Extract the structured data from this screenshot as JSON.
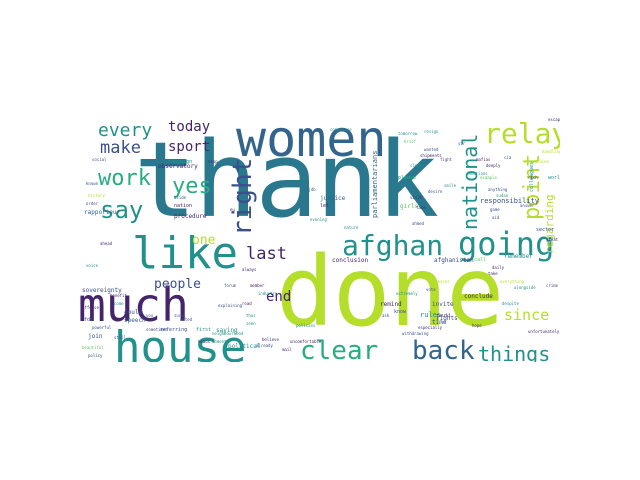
{
  "palette": {
    "dark_purple": "#44256b",
    "indigo": "#3b4f8a",
    "slate_blue": "#33658c",
    "teal_blue": "#2a788e",
    "teal": "#21918c",
    "green_teal": "#27ad81",
    "green": "#5ec962",
    "lime": "#b5de2b",
    "yellow_green": "#c8e020"
  },
  "cloud": {
    "words": [
      {
        "key": "thank",
        "text": "thank",
        "weight": 100,
        "color": "#2a788e"
      },
      {
        "key": "done",
        "text": "done",
        "weight": 95,
        "color": "#b5de2b"
      },
      {
        "key": "women",
        "text": "women",
        "weight": 52,
        "color": "#33658c"
      },
      {
        "key": "much",
        "text": "much",
        "weight": 45,
        "color": "#44256b"
      },
      {
        "key": "house",
        "text": "house",
        "weight": 45,
        "color": "#21918c"
      },
      {
        "key": "like",
        "text": "like",
        "weight": 43,
        "color": "#21918c"
      },
      {
        "key": "afghan",
        "text": "afghan",
        "weight": 30,
        "color": "#21918c"
      },
      {
        "key": "going",
        "text": "going",
        "weight": 30,
        "color": "#21918c"
      },
      {
        "key": "relay",
        "text": "relay",
        "weight": 28,
        "color": "#b5de2b"
      },
      {
        "key": "right",
        "text": "right",
        "weight": 26,
        "color": "#3b4f8a"
      },
      {
        "key": "clear",
        "text": "clear",
        "weight": 26,
        "color": "#27ad81"
      },
      {
        "key": "back",
        "text": "back",
        "weight": 25,
        "color": "#33658c"
      },
      {
        "key": "say",
        "text": "say",
        "weight": 24,
        "color": "#21918c"
      },
      {
        "key": "work",
        "text": "work",
        "weight": 22,
        "color": "#27ad81"
      },
      {
        "key": "yes",
        "text": "yes",
        "weight": 20,
        "color": "#27ad81"
      },
      {
        "key": "point",
        "text": "point",
        "weight": 20,
        "color": "#b5de2b"
      },
      {
        "key": "national",
        "text": "national",
        "weight": 18,
        "color": "#21918c"
      },
      {
        "key": "things",
        "text": "things",
        "weight": 19,
        "color": "#21918c"
      },
      {
        "key": "every",
        "text": "every",
        "weight": 18,
        "color": "#21918c"
      },
      {
        "key": "make",
        "text": "make",
        "weight": 17,
        "color": "#3b4f8a"
      },
      {
        "key": "last",
        "text": "last",
        "weight": 17,
        "color": "#44256b"
      },
      {
        "key": "since",
        "text": "since",
        "weight": 15,
        "color": "#b5de2b"
      },
      {
        "key": "today",
        "text": "today",
        "weight": 14,
        "color": "#44256b"
      },
      {
        "key": "sport",
        "text": "sport",
        "weight": 14,
        "color": "#44256b"
      },
      {
        "key": "end",
        "text": "end",
        "weight": 14,
        "color": "#44256b"
      },
      {
        "key": "people",
        "text": "people",
        "weight": 13,
        "color": "#3b4f8a"
      },
      {
        "key": "one",
        "text": "one",
        "weight": 13,
        "color": "#b5de2b"
      },
      {
        "key": "regarding",
        "text": "regarding",
        "weight": 11,
        "color": "#b5de2b"
      },
      {
        "key": "rules",
        "text": "rules",
        "weight": 7,
        "color": "#21918c"
      },
      {
        "key": "responsibility",
        "text": "responsibility",
        "weight": 7,
        "color": "#3b4f8a"
      },
      {
        "key": "parliamentarians",
        "text": "parliamentarians",
        "weight": 7,
        "color": "#33658c"
      },
      {
        "key": "remember",
        "text": "remember",
        "weight": 6,
        "color": "#21918c"
      },
      {
        "key": "observatory",
        "text": "observatory",
        "weight": 6,
        "color": "#44256b"
      },
      {
        "key": "sovereignty",
        "text": "sovereignty",
        "weight": 6,
        "color": "#3b4f8a"
      },
      {
        "key": "rapporteur",
        "text": "rapporteur",
        "weight": 6,
        "color": "#33658c"
      },
      {
        "key": "procedure",
        "text": "procedure",
        "weight": 6,
        "color": "#44256b"
      },
      {
        "key": "conclude",
        "text": "conclude",
        "weight": 6,
        "color": "#44256b"
      },
      {
        "key": "conclusion",
        "text": "conclusion",
        "weight": 6,
        "color": "#44256b"
      },
      {
        "key": "afghanistan",
        "text": "afghanistan",
        "weight": 6,
        "color": "#3b4f8a"
      },
      {
        "key": "saying",
        "text": "saying",
        "weight": 6,
        "color": "#21918c"
      },
      {
        "key": "political",
        "text": "political",
        "weight": 6,
        "color": "#21918c"
      },
      {
        "key": "referring",
        "text": "referring",
        "weight": 5,
        "color": "#3b4f8a"
      },
      {
        "key": "invite",
        "text": "invite",
        "weight": 6,
        "color": "#3b4f8a"
      },
      {
        "key": "justice",
        "text": "justice",
        "weight": 6,
        "color": "#33658c"
      },
      {
        "key": "campaign",
        "text": "campaign",
        "weight": 5,
        "color": "#21918c"
      },
      {
        "key": "colleagues",
        "text": "colleagues",
        "weight": 5,
        "color": "#21918c"
      },
      {
        "key": "sector",
        "text": "sector",
        "weight": 5,
        "color": "#3b4f8a"
      },
      {
        "key": "could",
        "text": "could",
        "weight": 6,
        "color": "#3b4f8a"
      },
      {
        "key": "speech",
        "text": "speech",
        "weight": 6,
        "color": "#33658c"
      },
      {
        "key": "nation",
        "text": "nation",
        "weight": 5,
        "color": "#44256b"
      },
      {
        "key": "join",
        "text": "join",
        "weight": 6,
        "color": "#3b4f8a"
      },
      {
        "key": "girls",
        "text": "girls",
        "weight": 6,
        "color": "#5ec962"
      },
      {
        "key": "please",
        "text": "please",
        "weight": 5,
        "color": "#27ad81"
      },
      {
        "key": "rights",
        "text": "rights",
        "weight": 6,
        "color": "#3b4f8a"
      },
      {
        "key": "remind",
        "text": "remind",
        "weight": 6,
        "color": "#44256b"
      },
      {
        "key": "time",
        "text": "time",
        "weight": 6,
        "color": "#3b4f8a"
      },
      {
        "key": "fdi",
        "text": "fdi",
        "weight": 5,
        "color": "#3b4f8a"
      },
      {
        "key": "first",
        "text": "first",
        "weight": 5,
        "color": "#21918c"
      },
      {
        "key": "call",
        "text": "call",
        "weight": 5,
        "color": "#5ec962"
      },
      {
        "key": "rauti",
        "text": "rauti",
        "weight": 5,
        "color": "#44256b"
      },
      {
        "key": "know",
        "text": "know",
        "weight": 5,
        "color": "#3b4f8a"
      },
      {
        "key": "let",
        "text": "let",
        "weight": 5,
        "color": "#44256b"
      },
      {
        "key": "world",
        "text": "world",
        "weight": 5,
        "color": "#21918c"
      },
      {
        "key": "road",
        "text": "road",
        "weight": 4,
        "color": "#44256b"
      },
      {
        "key": "sure",
        "text": "sure",
        "weight": 4,
        "color": "#3b4f8a"
      },
      {
        "key": "thus",
        "text": "thus",
        "weight": 4,
        "color": "#21918c"
      },
      {
        "key": "committee",
        "text": "committee",
        "weight": 4,
        "color": "#21918c"
      },
      {
        "key": "ejdb",
        "text": "ejdb",
        "weight": 4,
        "color": "#33658c"
      },
      {
        "key": "eu",
        "text": "eu",
        "weight": 4,
        "color": "#44256b"
      },
      {
        "key": "always",
        "text": "always",
        "weight": 4,
        "color": "#44256b"
      },
      {
        "key": "member",
        "text": "member",
        "weight": 4,
        "color": "#44256b"
      },
      {
        "key": "come",
        "text": "come",
        "weight": 4,
        "color": "#21918c"
      },
      {
        "key": "aside",
        "text": "aside",
        "weight": 4,
        "color": "#3b4f8a"
      },
      {
        "key": "noted",
        "text": "noted",
        "weight": 4,
        "color": "#3b4f8a"
      },
      {
        "key": "benefit",
        "text": "benefit",
        "weight": 4,
        "color": "#44256b"
      },
      {
        "key": "powerful",
        "text": "powerful",
        "weight": 4,
        "color": "#3b4f8a"
      },
      {
        "key": "ahead",
        "text": "ahead",
        "weight": 4,
        "color": "#44256b"
      },
      {
        "key": "already",
        "text": "already",
        "weight": 4,
        "color": "#3b4f8a"
      },
      {
        "key": "evening",
        "text": "evening",
        "weight": 4,
        "color": "#21918c"
      },
      {
        "key": "nature",
        "text": "nature",
        "weight": 4,
        "color": "#21918c"
      },
      {
        "key": "social",
        "text": "social",
        "weight": 4,
        "color": "#3b4f8a"
      },
      {
        "key": "known",
        "text": "known",
        "weight": 4,
        "color": "#3b4f8a"
      },
      {
        "key": "order",
        "text": "order",
        "weight": 4,
        "color": "#3b4f8a"
      },
      {
        "key": "history",
        "text": "history",
        "weight": 4,
        "color": "#b5de2b"
      },
      {
        "key": "policy",
        "text": "policy",
        "weight": 4,
        "color": "#3b4f8a"
      },
      {
        "key": "beautiful",
        "text": "beautiful",
        "weight": 4,
        "color": "#5ec962"
      },
      {
        "key": "offense",
        "text": "offense",
        "weight": 4,
        "color": "#44256b"
      },
      {
        "key": "believe",
        "text": "believe",
        "weight": 4,
        "color": "#44256b"
      },
      {
        "key": "policies",
        "text": "policies",
        "weight": 4,
        "color": "#21918c"
      },
      {
        "key": "uncomfortable",
        "text": "uncomfortable",
        "weight": 4,
        "color": "#44256b"
      },
      {
        "key": "voice",
        "text": "voice",
        "weight": 4,
        "color": "#21918c"
      },
      {
        "key": "desire",
        "text": "desire",
        "weight": 4,
        "color": "#3b4f8a"
      },
      {
        "key": "smile",
        "text": "smile",
        "weight": 4,
        "color": "#21918c"
      },
      {
        "key": "deeply",
        "text": "deeply",
        "weight": 4,
        "color": "#44256b"
      },
      {
        "key": "example",
        "text": "example",
        "weight": 4,
        "color": "#5ec962"
      },
      {
        "key": "anything",
        "text": "anything",
        "weight": 4,
        "color": "#3b4f8a"
      },
      {
        "key": "take",
        "text": "take",
        "weight": 4,
        "color": "#44256b"
      },
      {
        "key": "rich",
        "text": "rich",
        "weight": 4,
        "color": "#44256b"
      },
      {
        "key": "ukraine",
        "text": "ukraine",
        "weight": 4,
        "color": "#b5de2b"
      },
      {
        "key": "aid",
        "text": "aid",
        "weight": 4,
        "color": "#3b4f8a"
      },
      {
        "key": "answer",
        "text": "answer",
        "weight": 4,
        "color": "#3b4f8a"
      },
      {
        "key": "face",
        "text": "face",
        "weight": 4,
        "color": "#44256b"
      },
      {
        "key": "mail",
        "text": "mail",
        "weight": 4,
        "color": "#44256b"
      },
      {
        "key": "great",
        "text": "great",
        "weight": 4,
        "color": "#44256b"
      },
      {
        "key": "stop",
        "text": "stop",
        "weight": 4,
        "color": "#44256b"
      },
      {
        "key": "resign",
        "text": "resign",
        "weight": 4,
        "color": "#21918c"
      },
      {
        "key": "handling",
        "text": "handling",
        "weight": 4,
        "color": "#b5de2b"
      },
      {
        "key": "daily",
        "text": "daily",
        "weight": 4,
        "color": "#44256b"
      },
      {
        "key": "everything",
        "text": "everything",
        "weight": 4,
        "color": "#b5de2b"
      },
      {
        "key": "alongside",
        "text": "alongside",
        "weight": 4,
        "color": "#21918c"
      },
      {
        "key": "expresses",
        "text": "expresses",
        "weight": 4,
        "color": "#b5de2b"
      },
      {
        "key": "sudan",
        "text": "sudan",
        "weight": 4,
        "color": "#21918c"
      },
      {
        "key": "extremely",
        "text": "extremely",
        "weight": 4,
        "color": "#21918c"
      },
      {
        "key": "despite",
        "text": "despite",
        "weight": 4,
        "color": "#21918c"
      },
      {
        "key": "mafias",
        "text": "mafias",
        "weight": 4,
        "color": "#44256b"
      },
      {
        "key": "sanctions",
        "text": "sanctions",
        "weight": 4,
        "color": "#21918c"
      },
      {
        "key": "tomorrow",
        "text": "tomorrow",
        "weight": 4,
        "color": "#21918c"
      },
      {
        "key": "brief",
        "text": "brief",
        "weight": 4,
        "color": "#5ec962"
      },
      {
        "key": "wanted",
        "text": "wanted",
        "weight": 4,
        "color": "#3b4f8a"
      },
      {
        "key": "close",
        "text": "close",
        "weight": 4,
        "color": "#21918c"
      },
      {
        "key": "visit",
        "text": "visit",
        "weight": 4,
        "color": "#44256b"
      },
      {
        "key": "fight",
        "text": "fight",
        "weight": 4,
        "color": "#3b4f8a"
      },
      {
        "key": "shipments",
        "text": "shipments",
        "weight": 4,
        "color": "#44256b"
      },
      {
        "key": "sir",
        "text": "sir",
        "weight": 4,
        "color": "#3b4f8a"
      },
      {
        "key": "crime",
        "text": "crime",
        "weight": 4,
        "color": "#3b4f8a"
      },
      {
        "key": "cia",
        "text": "cia",
        "weight": 4,
        "color": "#3b4f8a"
      },
      {
        "key": "industry",
        "text": "industry",
        "weight": 4,
        "color": "#21918c"
      },
      {
        "key": "explaining",
        "text": "explaining",
        "weight": 4,
        "color": "#3b4f8a"
      },
      {
        "key": "forum",
        "text": "forum",
        "weight": 4,
        "color": "#3b4f8a"
      },
      {
        "key": "game",
        "text": "game",
        "weight": 4,
        "color": "#3b4f8a"
      },
      {
        "key": "escape",
        "text": "escape",
        "weight": 4,
        "color": "#44256b"
      },
      {
        "key": "ahmed",
        "text": "ahmed",
        "weight": 4,
        "color": "#3b4f8a"
      },
      {
        "key": "ask",
        "text": "ask",
        "weight": 4,
        "color": "#3b4f8a"
      },
      {
        "key": "especially",
        "text": "especially",
        "weight": 4,
        "color": "#44256b"
      },
      {
        "key": "seen",
        "text": "seen",
        "weight": 4,
        "color": "#21918c"
      },
      {
        "key": "vote",
        "text": "vote",
        "weight": 4,
        "color": "#3b4f8a"
      },
      {
        "key": "heads",
        "text": "heads",
        "weight": 4,
        "color": "#44256b"
      },
      {
        "key": "withdrawing",
        "text": "withdrawing",
        "weight": 4,
        "color": "#3b4f8a"
      },
      {
        "key": "hope",
        "text": "hope",
        "weight": 4,
        "color": "#44256b"
      },
      {
        "key": "neighbourhood",
        "text": "neighbourhood",
        "weight": 4,
        "color": "#21918c"
      },
      {
        "key": "sometimes",
        "text": "sometimes",
        "weight": 4,
        "color": "#3b4f8a"
      },
      {
        "key": "vox",
        "text": "vox",
        "weight": 4,
        "color": "#3b4f8a"
      },
      {
        "key": "unfortunately",
        "text": "unfortunately",
        "weight": 4,
        "color": "#44256b"
      },
      {
        "key": "still",
        "text": "still",
        "weight": 4,
        "color": "#3b4f8a"
      },
      {
        "key": "moment",
        "text": "moment",
        "weight": 4,
        "color": "#21918c"
      }
    ]
  }
}
